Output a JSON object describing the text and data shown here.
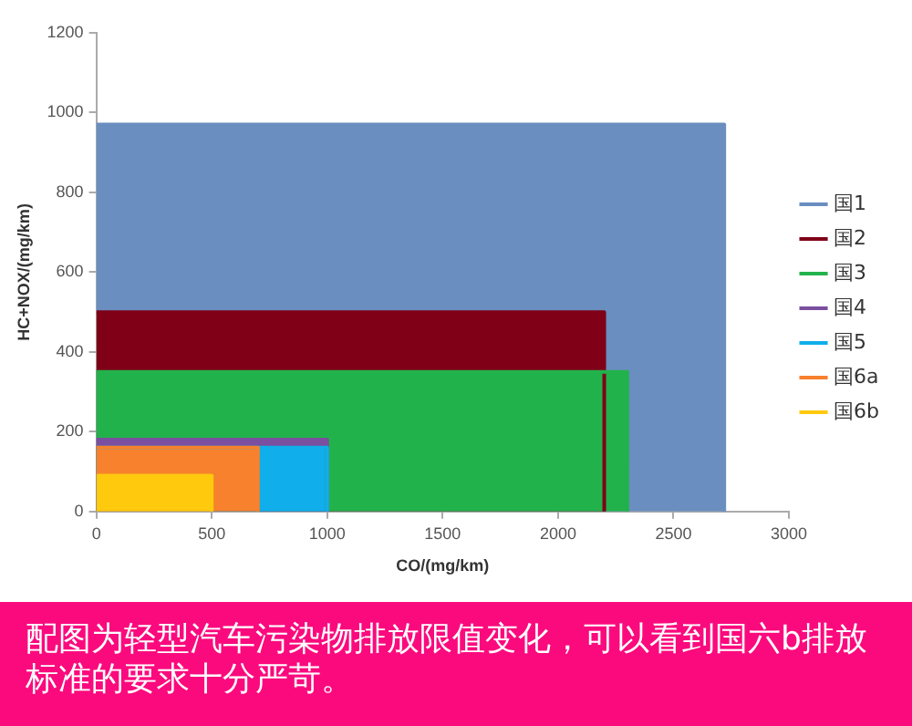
{
  "chart_data": {
    "type": "area",
    "xlabel": "CO/(mg/km)",
    "ylabel": "HC+NOX/(mg/km)",
    "xlim": [
      0,
      3000
    ],
    "xticks": [
      0,
      500,
      1000,
      1500,
      2000,
      2500,
      3000
    ],
    "ylim": [
      0,
      1200
    ],
    "yticks": [
      0,
      200,
      400,
      600,
      800,
      1000,
      1200
    ],
    "grid": false,
    "legend": "right",
    "marker": "none",
    "series": [
      {
        "name": "国1",
        "color": "#6a8ec0",
        "x": [
          0,
          2720,
          2720
        ],
        "values": [
          970,
          970,
          0
        ]
      },
      {
        "name": "国2",
        "color": "#800018",
        "x": [
          0,
          2200,
          2200
        ],
        "values": [
          500,
          500,
          0
        ]
      },
      {
        "name": "国3",
        "color": "#22b24c",
        "x": [
          0,
          2300,
          2300
        ],
        "values": [
          350,
          350,
          0
        ]
      },
      {
        "name": "国4",
        "color": "#7a4fa0",
        "x": [
          0,
          1000,
          1000
        ],
        "values": [
          180,
          180,
          0
        ]
      },
      {
        "name": "国5",
        "color": "#10aeea",
        "x": [
          0,
          1000,
          1000
        ],
        "values": [
          160,
          160,
          0
        ]
      },
      {
        "name": "国6a",
        "color": "#f7812c",
        "x": [
          0,
          700,
          700
        ],
        "values": [
          160,
          160,
          0
        ]
      },
      {
        "name": "国6b",
        "color": "#ffc90e",
        "x": [
          0,
          500,
          500
        ],
        "values": [
          90,
          90,
          0
        ]
      }
    ],
    "annotations": [
      "配图为轻型汽车污染物排放限值变化，可以看到国六b排放标准的要求十分严苛。"
    ]
  }
}
